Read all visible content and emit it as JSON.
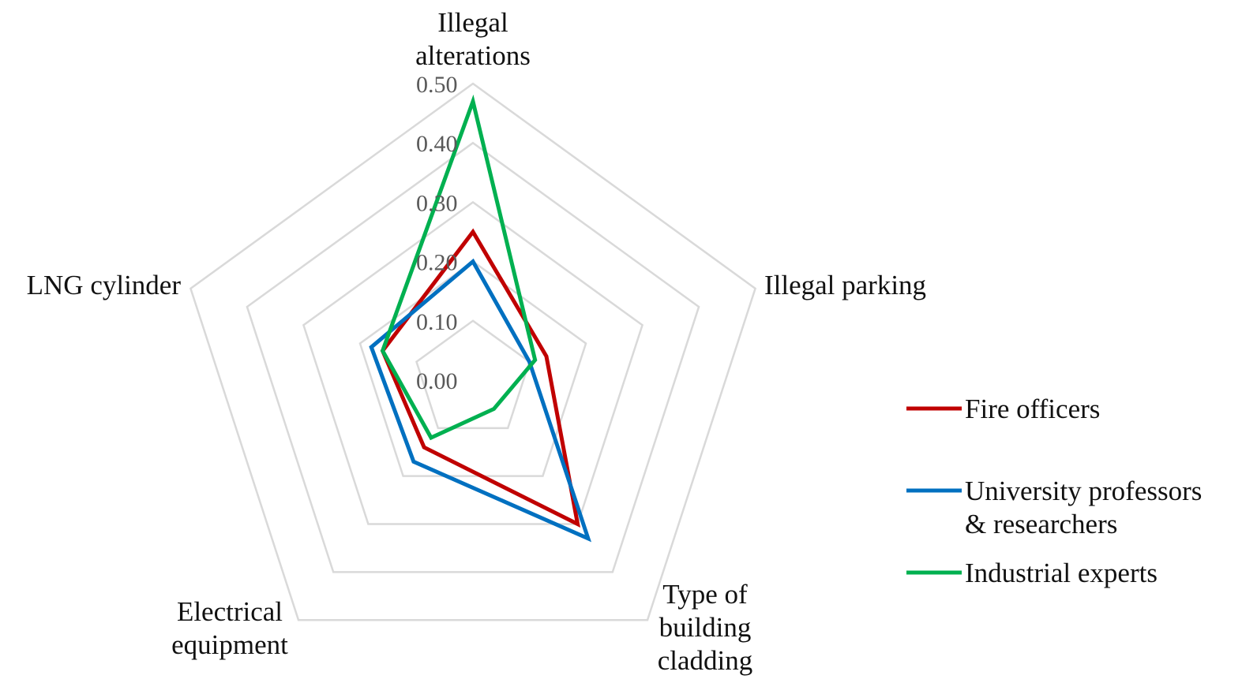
{
  "chart_data": {
    "type": "radar",
    "title": "",
    "axes": [
      "Illegal alterations",
      "Illegal parking",
      "Type of building cladding",
      "Electrical equipment",
      "LNG cylinder"
    ],
    "axis_label_lines": [
      [
        "Illegal",
        "alterations"
      ],
      [
        "Illegal parking"
      ],
      [
        "Type of",
        "building",
        "cladding"
      ],
      [
        "Electrical",
        "equipment"
      ],
      [
        "LNG cylinder"
      ]
    ],
    "range": [
      0,
      0.5
    ],
    "ticks": [
      "0.00",
      "0.10",
      "0.20",
      "0.30",
      "0.40",
      "0.50"
    ],
    "tick_values": [
      0,
      0.1,
      0.2,
      0.3,
      0.4,
      0.5
    ],
    "grid": true,
    "legend_position": "right",
    "series": [
      {
        "name": "Fire officers",
        "legend_lines": [
          "Fire officers"
        ],
        "color": "#C00000",
        "values": [
          0.25,
          0.13,
          0.3,
          0.14,
          0.16
        ]
      },
      {
        "name": "University professors & researchers",
        "legend_lines": [
          "University professors",
          "& researchers"
        ],
        "color": "#0070C0",
        "values": [
          0.2,
          0.1,
          0.33,
          0.17,
          0.18
        ]
      },
      {
        "name": "Industrial experts",
        "legend_lines": [
          "Industrial experts"
        ],
        "color": "#00B050",
        "values": [
          0.47,
          0.11,
          0.06,
          0.12,
          0.16
        ]
      }
    ]
  }
}
